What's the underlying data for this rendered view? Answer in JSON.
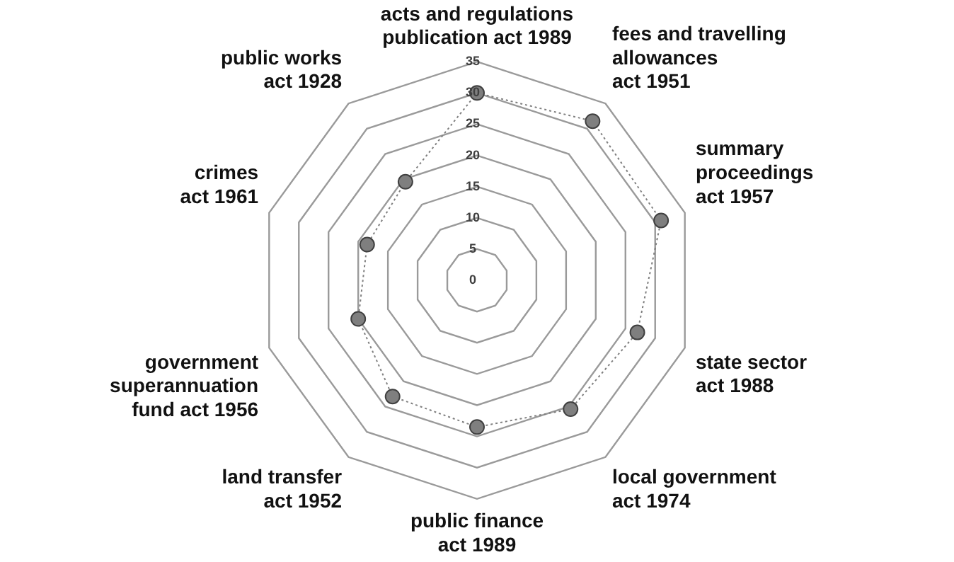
{
  "chart_data": {
    "type": "radar",
    "categories": [
      "acts and regulations\npublication act 1989",
      "fees and travelling\nallowances\nact 1951",
      "summary\nproceedings\nact 1957",
      "state sector\nact 1988",
      "local government\nact 1974",
      "public finance\nact 1989",
      "land transfer\nact 1952",
      "government\nsuperannuation\nfund act 1956",
      "crimes\nact 1961",
      "public works\nact 1928"
    ],
    "series": [
      {
        "color": "#7f7f7f",
        "values": [
          30,
          31.5,
          31,
          27,
          25.5,
          23.5,
          23,
          20,
          18.5,
          19.5
        ]
      }
    ],
    "ylim": [
      0,
      35
    ],
    "yticks": [
      0,
      5,
      10,
      15,
      20,
      25,
      30,
      35
    ],
    "grid": true,
    "legend": false,
    "marker": "circle",
    "line_style": "dotted"
  }
}
